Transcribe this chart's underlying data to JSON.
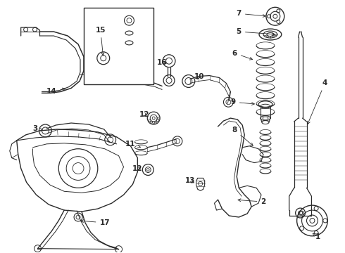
{
  "bg_color": "#ffffff",
  "line_color": "#2a2a2a",
  "fig_width": 4.9,
  "fig_height": 3.6,
  "dpi": 100,
  "label_fs": 7.5,
  "lw_main": 0.9,
  "lw_med": 0.7,
  "lw_thin": 0.5
}
